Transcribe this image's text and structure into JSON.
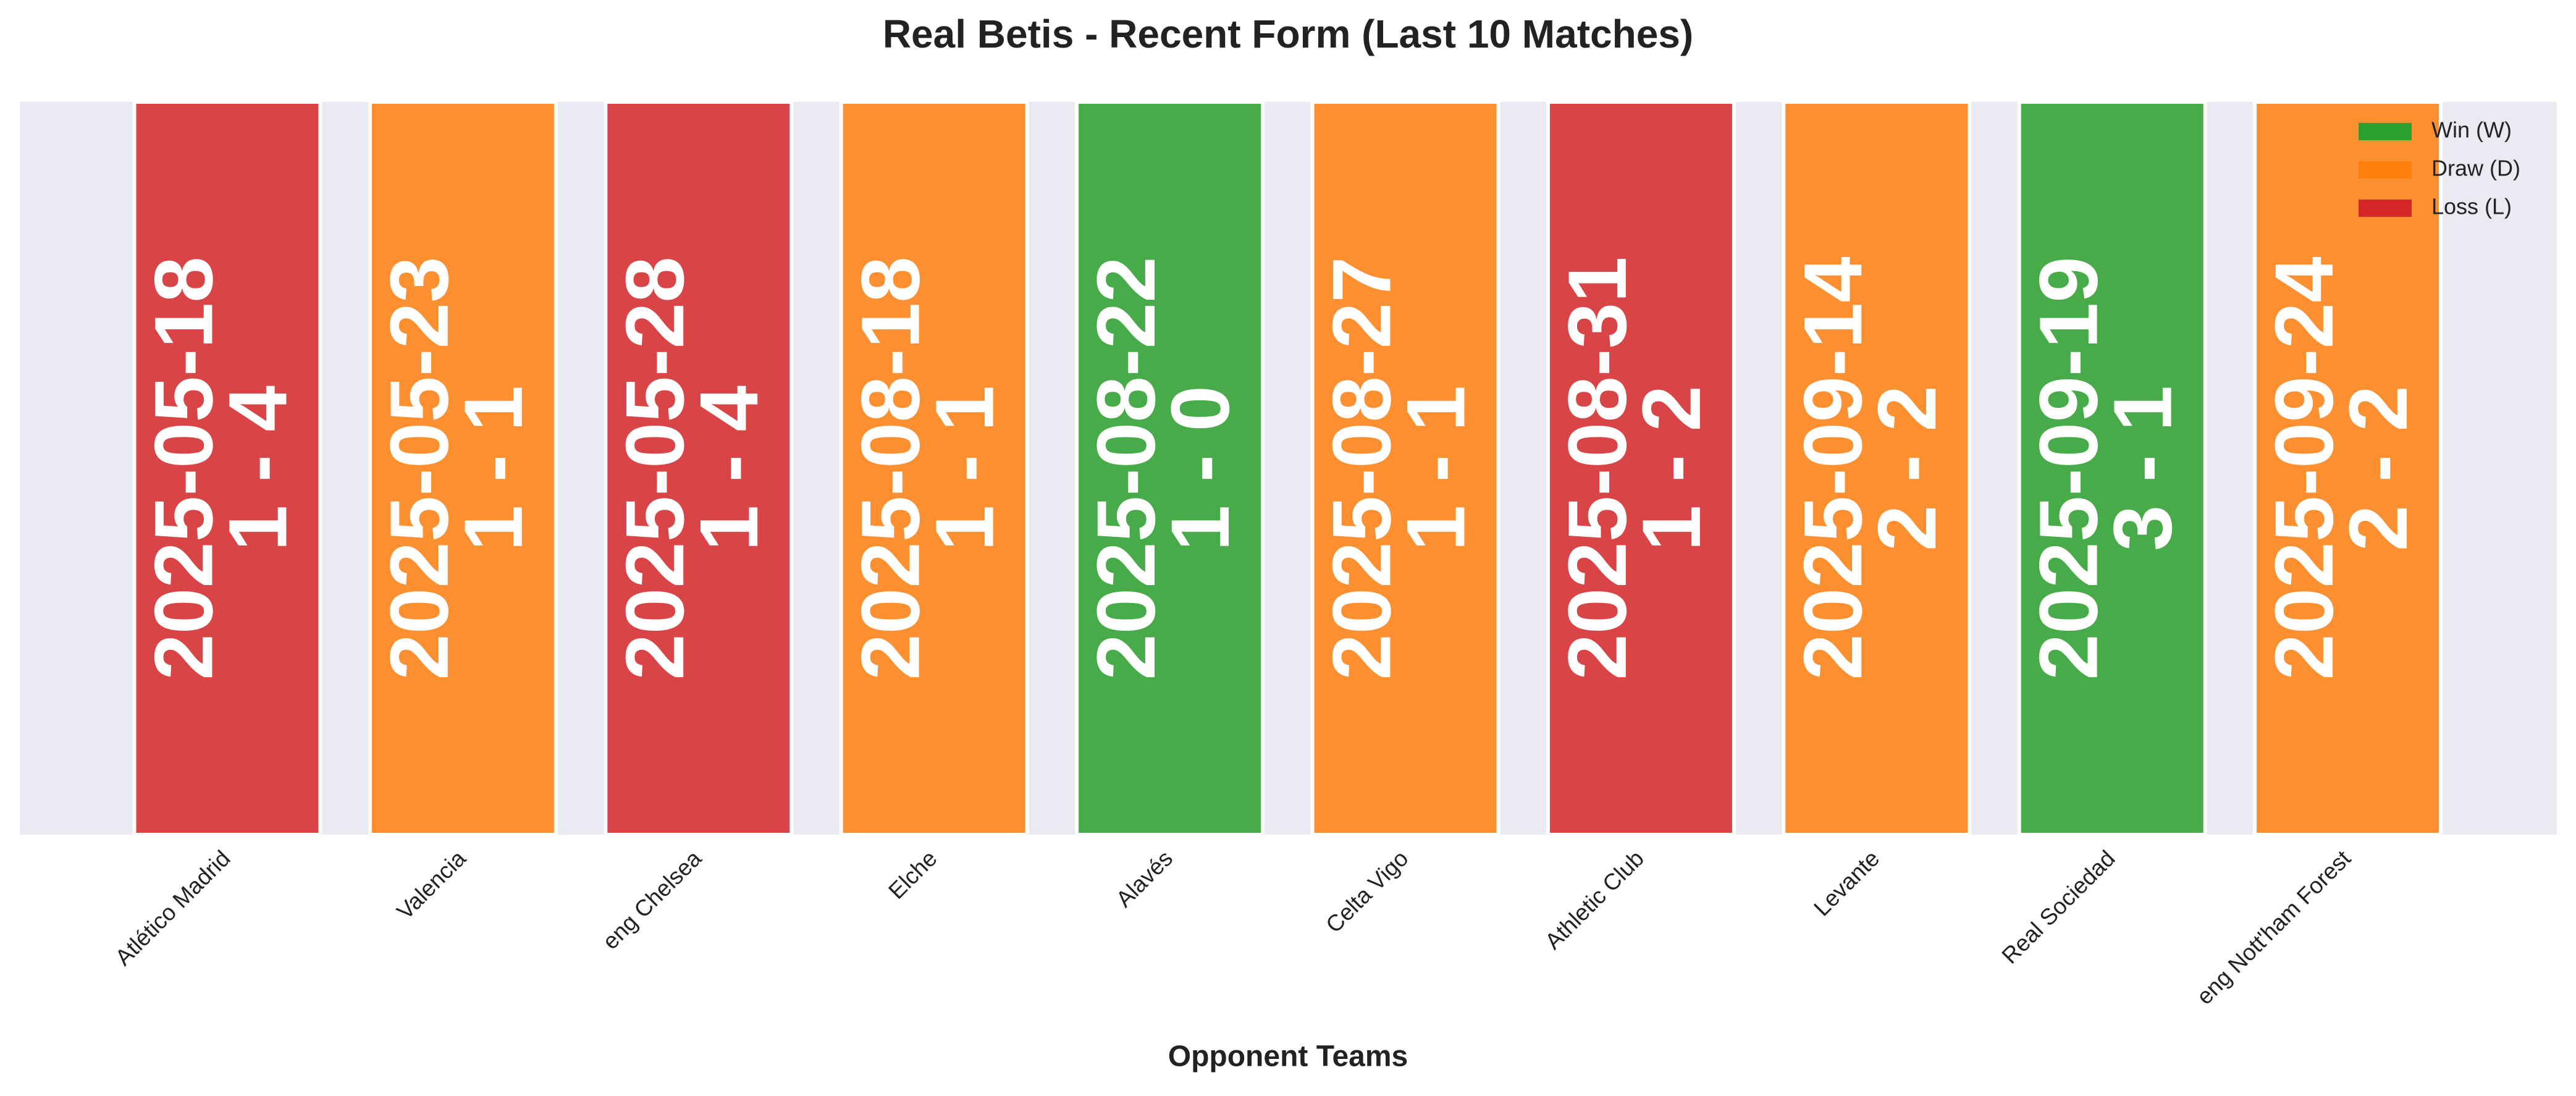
{
  "chart_data": {
    "type": "form-bars",
    "title": "Real Betis - Recent Form (Last 10 Matches)",
    "xlabel": "Opponent Teams",
    "categories": [
      "Atlético Madrid",
      "Valencia",
      "eng Chelsea",
      "Elche",
      "Alavés",
      "Celta Vigo",
      "Athletic Club",
      "Levante",
      "Real Sociedad",
      "eng Nott'ham Forest"
    ],
    "dates": [
      "2025-05-18",
      "2025-05-23",
      "2025-05-28",
      "2025-08-18",
      "2025-08-22",
      "2025-08-27",
      "2025-08-31",
      "2025-09-14",
      "2025-09-19",
      "2025-09-24"
    ],
    "scores": [
      "1 - 4",
      "1 - 1",
      "1 - 4",
      "1 - 1",
      "1 - 0",
      "1 - 1",
      "1 - 2",
      "2 - 2",
      "3 - 1",
      "2 - 2"
    ],
    "colors": [
      "#d62728",
      "#ff7f0e",
      "#d62728",
      "#ff7f0e",
      "#2ca02c",
      "#ff7f0e",
      "#d62728",
      "#ff7f0e",
      "#2ca02c",
      "#ff7f0e"
    ],
    "legend": [
      {
        "name": "Win (W)",
        "color": "#2ca02c"
      },
      {
        "name": "Draw (D)",
        "color": "#ff7f0e"
      },
      {
        "name": "Loss (L)",
        "color": "#d62728"
      }
    ],
    "legend_position": "upper right"
  }
}
